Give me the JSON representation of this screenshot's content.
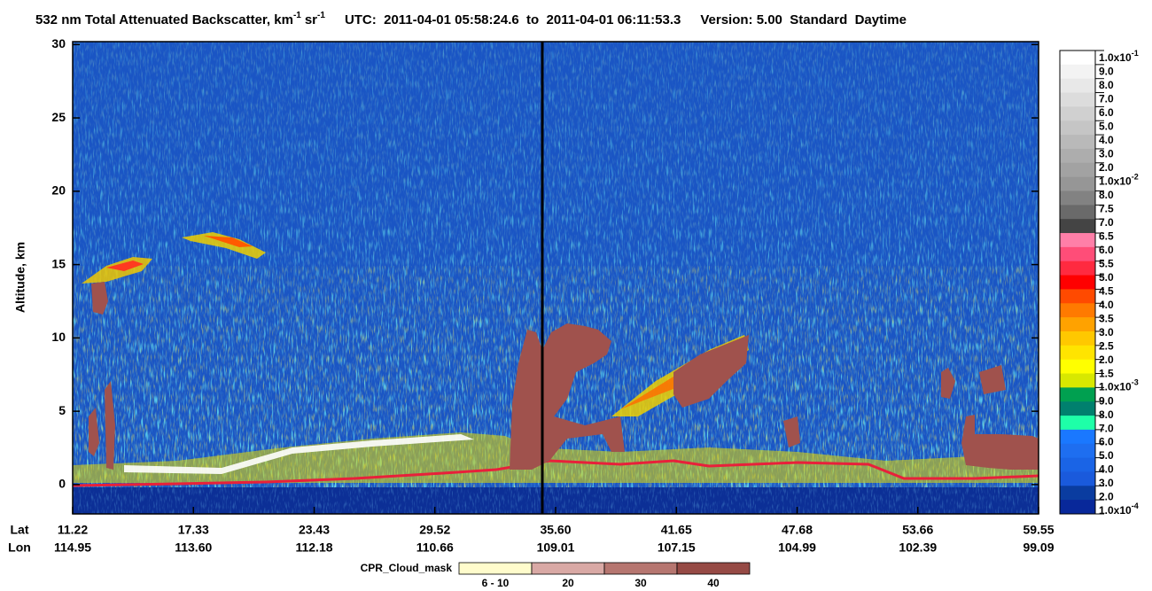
{
  "chart_data": {
    "type": "curtain",
    "title": {
      "main": "532 nm Total Attenuated Backscatter, km",
      "exp1": "-1",
      "unit2": "sr",
      "exp2": "-1",
      "utc": "UTC:  2011-04-01 05:58:24.6  to  2011-04-01 06:11:53.3",
      "version": "Version: 5.00  Standard  Daytime"
    },
    "y_label": "Altitude, km",
    "ylim": [
      -2,
      30.2
    ],
    "yticks": [
      0,
      5,
      10,
      15,
      20,
      25,
      30
    ],
    "x_row_labels": {
      "lat": "Lat",
      "lon": "Lon"
    },
    "x_labels": [
      {
        "lat": "11.22",
        "lon": "114.95"
      },
      {
        "lat": "17.33",
        "lon": "113.60"
      },
      {
        "lat": "23.43",
        "lon": "112.18"
      },
      {
        "lat": "29.52",
        "lon": "110.66"
      },
      {
        "lat": "35.60",
        "lon": "109.01"
      },
      {
        "lat": "41.65",
        "lon": "107.15"
      },
      {
        "lat": "47.68",
        "lon": "104.99"
      },
      {
        "lat": "53.66",
        "lon": "102.39"
      },
      {
        "lat": "59.55",
        "lon": "99.09"
      }
    ],
    "colorbar": {
      "labels": [
        {
          "text": "1.0x10",
          "sup": "-1"
        },
        "9.0",
        "8.0",
        "7.0",
        "6.0",
        "5.0",
        "4.0",
        "3.0",
        "2.0",
        {
          "text": "1.0x10",
          "sup": "-2"
        },
        "8.0",
        "7.5",
        "7.0",
        "6.5",
        "6.0",
        "5.5",
        "5.0",
        "4.5",
        "4.0",
        "3.5",
        "3.0",
        "2.5",
        "2.0",
        "1.5",
        {
          "text": "1.0x10",
          "sup": "-3"
        },
        "9.0",
        "8.0",
        "7.0",
        "6.0",
        "5.0",
        "4.0",
        "3.0",
        "2.0",
        {
          "text": "1.0x10",
          "sup": "-4"
        }
      ],
      "colors": [
        "#ffffff",
        "#f3f3f3",
        "#e8e8e8",
        "#dcdcdc",
        "#d0d0d0",
        "#c5c5c5",
        "#b9b9b9",
        "#adadad",
        "#a2a2a2",
        "#969696",
        "#828282",
        "#6a6a6a",
        "#444444",
        "#ff7fa8",
        "#ff4d78",
        "#ff2a40",
        "#ff0000",
        "#ff4a00",
        "#ff7a00",
        "#ffa200",
        "#ffc800",
        "#ffe400",
        "#ffff00",
        "#d8e800",
        "#00a050",
        "#00806e",
        "#1effa8",
        "#1a78ff",
        "#1e6ef0",
        "#1a64e6",
        "#1a5adc",
        "#0a3ca0",
        "#08289a"
      ]
    },
    "cpr_legend": {
      "title": "CPR_Cloud_mask",
      "items": [
        {
          "label": "6 - 10",
          "color": "#fffccc"
        },
        {
          "label": "20",
          "color": "#d9a9a5"
        },
        {
          "label": "30",
          "color": "#b67670"
        },
        {
          "label": "40",
          "color": "#964a45"
        }
      ]
    }
  }
}
